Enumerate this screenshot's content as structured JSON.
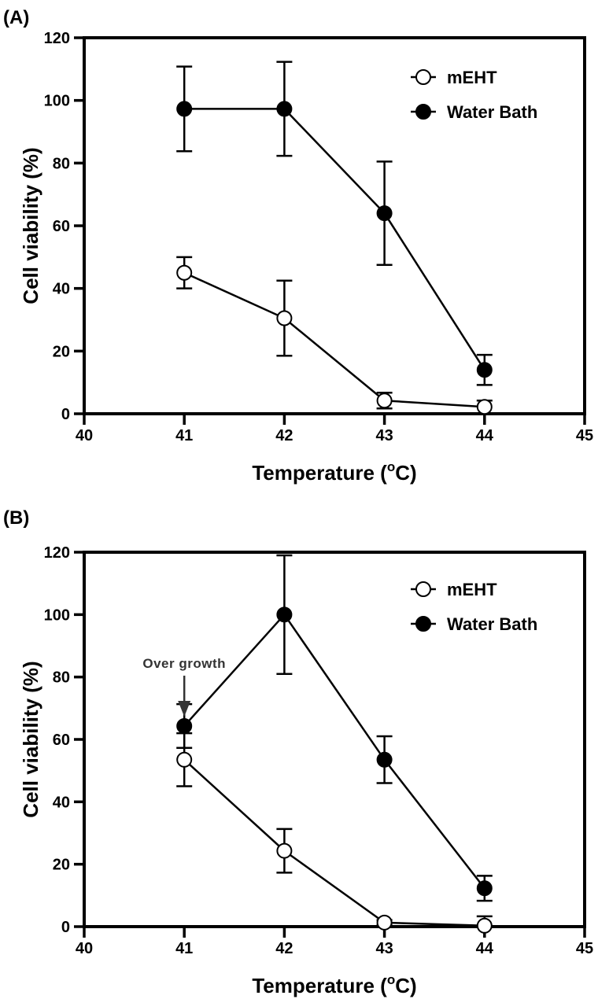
{
  "chart_data": [
    {
      "type": "line",
      "panel_label": "(A)",
      "xlabel": "Temperature (",
      "xlabel_sup": "o",
      "xlabel_tail": "C)",
      "ylabel": "Cell viability (%)",
      "xlim": [
        40,
        45
      ],
      "ylim": [
        0,
        120
      ],
      "xticks": [
        40,
        41,
        42,
        43,
        44,
        45
      ],
      "yticks": [
        0,
        20,
        40,
        60,
        80,
        100,
        120
      ],
      "grid": false,
      "legend_position": "top-right",
      "series": [
        {
          "name": "mEHT",
          "marker": "open-circle",
          "x": [
            41,
            42,
            43,
            44
          ],
          "y": [
            45,
            30.5,
            4.2,
            2.2
          ],
          "err": [
            5,
            12,
            2.5,
            2
          ]
        },
        {
          "name": "Water Bath",
          "marker": "filled-circle",
          "x": [
            41,
            42,
            43,
            44
          ],
          "y": [
            97.3,
            97.3,
            64,
            14
          ],
          "err": [
            13.5,
            15,
            16.5,
            4.8
          ]
        }
      ],
      "annotations": []
    },
    {
      "type": "line",
      "panel_label": "(B)",
      "xlabel": "Temperature (",
      "xlabel_sup": "o",
      "xlabel_tail": "C)",
      "ylabel": "Cell viability (%)",
      "xlim": [
        40,
        45
      ],
      "ylim": [
        0,
        120
      ],
      "xticks": [
        40,
        41,
        42,
        43,
        44,
        45
      ],
      "yticks": [
        0,
        20,
        40,
        60,
        80,
        100,
        120
      ],
      "grid": false,
      "legend_position": "top-right",
      "series": [
        {
          "name": "mEHT",
          "marker": "open-circle",
          "x": [
            41,
            42,
            43,
            44
          ],
          "y": [
            53.5,
            24.3,
            1.3,
            0.3
          ],
          "err": [
            8.5,
            7,
            0.8,
            3
          ]
        },
        {
          "name": "Water Bath",
          "marker": "filled-circle",
          "x": [
            41,
            42,
            43,
            44
          ],
          "y": [
            64.3,
            100,
            53.5,
            12.3
          ],
          "err": [
            7,
            19,
            7.5,
            4
          ]
        }
      ],
      "annotations": [
        {
          "text": "Over growth",
          "x": 41,
          "y": 64.3
        }
      ]
    }
  ]
}
